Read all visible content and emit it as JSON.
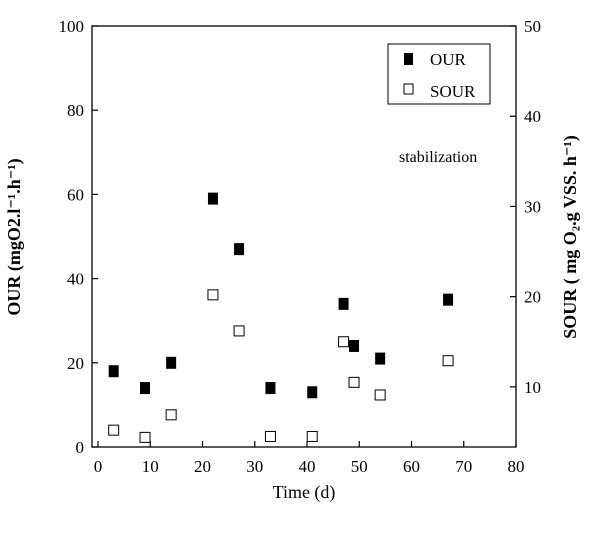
{
  "chart_data": {
    "type": "scatter",
    "xlabel": "Time (d)",
    "ylabel_left": "OUR (mgO2.l⁻¹.h⁻¹)",
    "ylabel_right": "SOUR ( mg O₂.g VSS. h⁻¹)",
    "xlim": [
      0,
      80
    ],
    "ylim_left": [
      0,
      100
    ],
    "ylim_right": [
      3,
      50
    ],
    "x_ticks": [
      0,
      10,
      20,
      30,
      40,
      50,
      60,
      70,
      80
    ],
    "y_ticks_left": [
      0,
      20,
      40,
      60,
      80,
      100
    ],
    "y_ticks_right": [
      10,
      20,
      30,
      40,
      50
    ],
    "grid": false,
    "legend_position": "top-right",
    "annotation": "stabilization",
    "series": [
      {
        "name": "OUR",
        "axis": "left",
        "marker": "filled-square",
        "color": "#000000",
        "x": [
          3,
          9,
          14,
          22,
          27,
          33,
          41,
          47,
          49,
          54,
          67
        ],
        "y": [
          18,
          14,
          20,
          59,
          47,
          14,
          13,
          34,
          24,
          21,
          35
        ]
      },
      {
        "name": "SOUR",
        "axis": "right",
        "marker": "open-square",
        "color": "#000000",
        "x": [
          3,
          9,
          14,
          22,
          27,
          33,
          41,
          47,
          49,
          54,
          67
        ],
        "y": [
          5.2,
          4.4,
          6.9,
          20.2,
          16.2,
          4.5,
          4.5,
          15.0,
          10.5,
          9.1,
          12.9
        ]
      }
    ]
  }
}
